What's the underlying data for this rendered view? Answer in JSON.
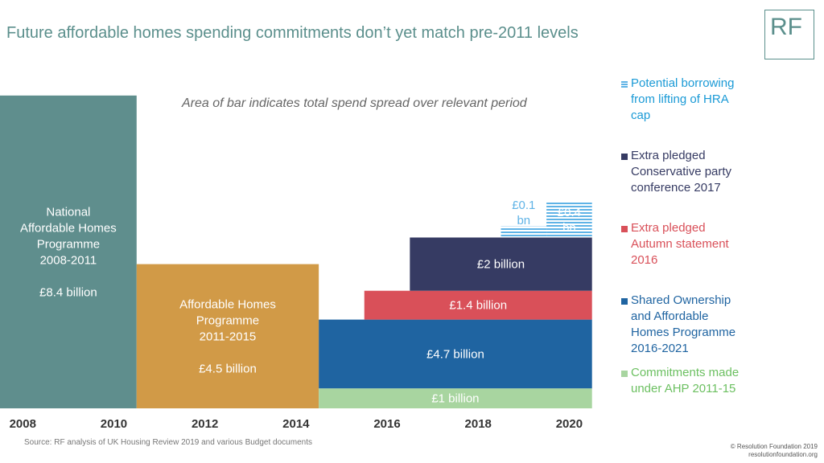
{
  "title": "Future affordable homes spending commitments don’t yet match pre-2011 levels",
  "logo_text": "RF",
  "note": "Area of bar indicates total spend spread over relevant period",
  "source": "Source: RF analysis of UK Housing Review 2019 and various Budget documents",
  "copyright": {
    "line1": "© Resolution Foundation 2019",
    "line2": "resolutionfoundation.org"
  },
  "colors": {
    "nahp": "#5f8e8d",
    "ahp": "#d19a47",
    "commitments": "#a8d5a0",
    "soahp": "#1f64a1",
    "autumn": "#d95059",
    "conservative": "#363b63",
    "hra": "#5fb3e6"
  },
  "legend": [
    {
      "label": "Potential borrowing\nfrom lifting of HRA\ncap",
      "color": "#5fb3e6",
      "text_color": "#1a9ad6"
    },
    {
      "label": "Extra pledged\nConservative party\nconference 2017",
      "color": "#363b63",
      "text_color": "#363b63"
    },
    {
      "label": "Extra pledged\nAutumn statement\n2016",
      "color": "#d95059",
      "text_color": "#d95059"
    },
    {
      "label": "Shared Ownership\nand Affordable\nHomes Programme\n2016-2021",
      "color": "#1f64a1",
      "text_color": "#1f64a1"
    },
    {
      "label": "Commitments made\nunder AHP 2011-15",
      "color": "#a8d5a0",
      "text_color": "#6cc061"
    }
  ],
  "chart_data": {
    "type": "bar",
    "xlabel": "",
    "ylabel": "",
    "x_ticks": [
      "2008",
      "2010",
      "2012",
      "2014",
      "2016",
      "2018",
      "2020"
    ],
    "x_tick_values": [
      2008,
      2010,
      2012,
      2014,
      2016,
      2018,
      2020
    ],
    "xlim": [
      2007.5,
      2021
    ],
    "blocks": [
      {
        "id": "nahp",
        "x0": 2007.5,
        "x1": 2010.5,
        "y0": 0,
        "y1": 14.1,
        "color": "#5f8e8d",
        "text_color": "#ffffff",
        "lines": [
          "National",
          "Affordable Homes",
          "Programme",
          "2008-2011",
          "",
          "£8.4 billion"
        ]
      },
      {
        "id": "ahp",
        "x0": 2010.5,
        "x1": 2014.5,
        "y0": 0,
        "y1": 6.5,
        "color": "#d19a47",
        "text_color": "#ffffff",
        "lines": [
          "Affordable Homes",
          "Programme",
          "2011-2015",
          "",
          "£4.5 billion"
        ]
      },
      {
        "id": "commitments",
        "x0": 2014.5,
        "x1": 2020.5,
        "y0": 0,
        "y1": 0.9,
        "color": "#a8d5a0",
        "text_color": "#ffffff",
        "lines": [
          "£1 billion"
        ]
      },
      {
        "id": "soahp",
        "x0": 2014.5,
        "x1": 2020.5,
        "y0": 0.9,
        "y1": 4.0,
        "color": "#1f64a1",
        "text_color": "#ffffff",
        "lines": [
          "£4.7 billion"
        ]
      },
      {
        "id": "autumn",
        "x0": 2015.5,
        "x1": 2020.5,
        "y0": 4.0,
        "y1": 5.3,
        "color": "#d95059",
        "text_color": "#ffffff",
        "lines": [
          "£1.4 billion"
        ]
      },
      {
        "id": "conservative",
        "x0": 2016.5,
        "x1": 2020.5,
        "y0": 5.3,
        "y1": 7.7,
        "color": "#363b63",
        "text_color": "#ffffff",
        "lines": [
          "£2 billion"
        ]
      },
      {
        "id": "hra1",
        "x0": 2018.5,
        "x1": 2019.5,
        "y0": 7.7,
        "y1": 8.2,
        "color": "#5fb3e6",
        "text_color": "#5fb3e6",
        "hatched": true,
        "lines": [
          "£0.1",
          "bn"
        ],
        "label_above": true
      },
      {
        "id": "hra2",
        "x0": 2019.5,
        "x1": 2020.5,
        "y0": 7.7,
        "y1": 9.3,
        "color": "#5fb3e6",
        "text_color": "#ffffff",
        "hatched": true,
        "lines": [
          "£0.4",
          "bn"
        ]
      }
    ]
  }
}
